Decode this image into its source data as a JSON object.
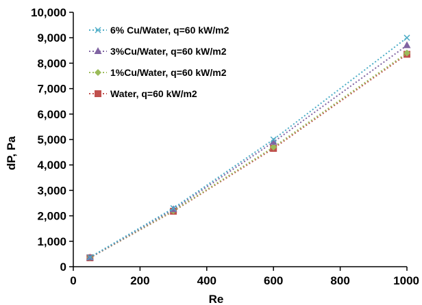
{
  "chart_data": {
    "type": "line",
    "xlabel": "Re",
    "ylabel": "dP, Pa",
    "xlim": [
      0,
      1000
    ],
    "ylim": [
      0,
      10000
    ],
    "x_ticks": [
      0,
      200,
      400,
      600,
      800,
      1000
    ],
    "x_tick_labels": [
      "0",
      "200",
      "400",
      "600",
      "800",
      "1000"
    ],
    "y_ticks": [
      0,
      1000,
      2000,
      3000,
      4000,
      5000,
      6000,
      7000,
      8000,
      9000,
      10000
    ],
    "y_tick_labels": [
      "0",
      "1,000",
      "2,000",
      "3,000",
      "4,000",
      "5,000",
      "6,000",
      "7,000",
      "8,000",
      "9,000",
      "10,000"
    ],
    "grid": false,
    "legend_position": "top-left",
    "series": [
      {
        "name": "6% Cu/Water, q=60 kW/m2",
        "color": "#4bacc6",
        "marker": "x",
        "x": [
          50,
          300,
          600,
          1000
        ],
        "y": [
          370,
          2300,
          5000,
          9000
        ]
      },
      {
        "name": "3%Cu/Water, q=60 kW/m2",
        "color": "#8064a2",
        "marker": "triangle",
        "x": [
          50,
          300,
          600,
          1000
        ],
        "y": [
          360,
          2250,
          4900,
          8700
        ]
      },
      {
        "name": "1%Cu/Water, q=60 kW/m2",
        "color": "#9bbb59",
        "marker": "diamond",
        "x": [
          50,
          300,
          600,
          1000
        ],
        "y": [
          355,
          2200,
          4700,
          8400
        ]
      },
      {
        "name": "Water, q=60 kW/m2",
        "color": "#c0504d",
        "marker": "square",
        "x": [
          50,
          300,
          600,
          1000
        ],
        "y": [
          350,
          2180,
          4650,
          8350
        ]
      }
    ]
  }
}
